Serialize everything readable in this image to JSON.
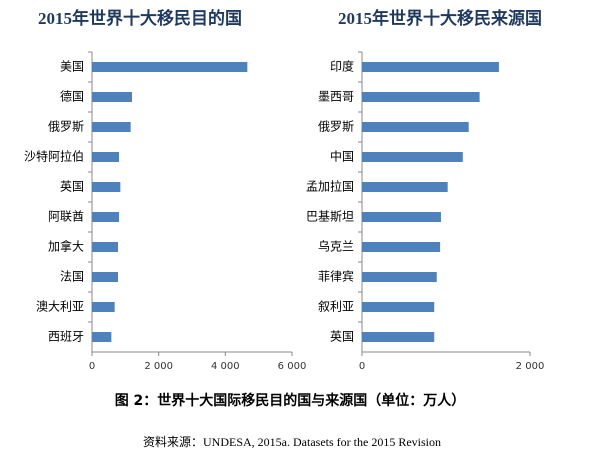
{
  "chart_data": [
    {
      "type": "bar",
      "orientation": "horizontal",
      "title": "2015年世界十大移民目的国",
      "categories": [
        "美国",
        "德国",
        "俄罗斯",
        "沙特阿拉伯",
        "英国",
        "阿联酋",
        "加拿大",
        "法国",
        "澳大利亚",
        "西班牙"
      ],
      "values": [
        4660,
        1200,
        1160,
        810,
        850,
        810,
        780,
        780,
        680,
        580
      ],
      "color": "#4f81bd",
      "xlim": [
        0,
        6000
      ],
      "xticks": [
        0,
        {
          "value": 2000,
          "label": "2 000"
        },
        {
          "value": 4000,
          "label": "4 000"
        },
        {
          "value": 6000,
          "label": "6 000"
        }
      ]
    },
    {
      "type": "bar",
      "orientation": "horizontal",
      "title": "2015年世界十大移民来源国",
      "categories": [
        "印度",
        "墨西哥",
        "俄罗斯",
        "中国",
        "孟加拉国",
        "巴基斯坦",
        "乌克兰",
        "菲律宾",
        "叙利亚",
        "英国"
      ],
      "values": [
        1630,
        1400,
        1270,
        1200,
        1020,
        940,
        930,
        890,
        860,
        860
      ],
      "color": "#4f81bd",
      "xlim": [
        0,
        2000
      ],
      "xticks": [
        0,
        {
          "value": 2000,
          "label": "2 000"
        }
      ]
    }
  ],
  "caption": "图 2：世界十大国际移民目的国与来源国（单位：万人）",
  "source": "资料来源：UNDESA, 2015a. Datasets for the 2015 Revision"
}
